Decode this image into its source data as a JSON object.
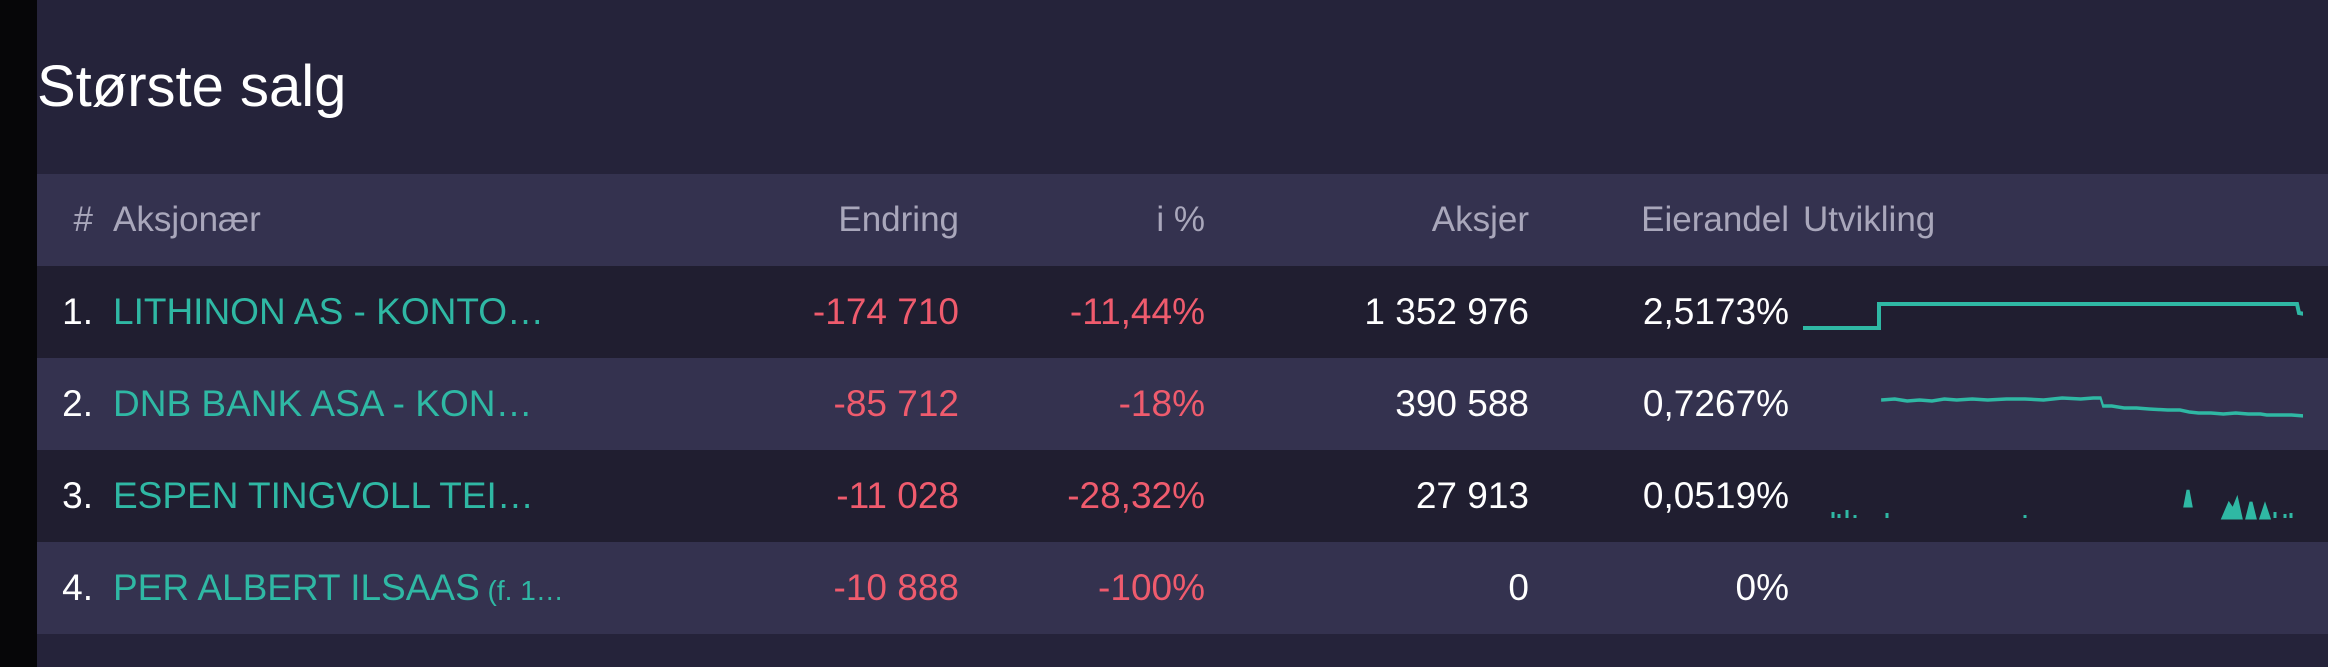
{
  "title": "Største salg",
  "colors": {
    "background": "#25233a",
    "row_alt": "#34324f",
    "row_dark": "#201e30",
    "name_link": "#2fb8a4",
    "negative": "#ef5b6d",
    "text": "#ffffff",
    "header_text": "#a9a7bb",
    "sparkline": "#2fb8a4"
  },
  "table": {
    "headers": {
      "num": "#",
      "name": "Aksjonær",
      "endring": "Endring",
      "pct": "i %",
      "aksjer": "Aksjer",
      "eierandel": "Eierandel",
      "utvikling": "Utvikling"
    },
    "rows": [
      {
        "num": "1.",
        "name": "LITHINON AS - KONTO…",
        "name_suffix": "",
        "endring": "-174 710",
        "pct": "-11,44%",
        "aksjer": "1 352 976",
        "eierandel": "2,5173%"
      },
      {
        "num": "2.",
        "name": "DNB BANK ASA - KON…",
        "name_suffix": "",
        "endring": "-85 712",
        "pct": "-18%",
        "aksjer": "390 588",
        "eierandel": "0,7267%"
      },
      {
        "num": "3.",
        "name": "ESPEN TINGVOLL TEI…",
        "name_suffix": "",
        "endring": "-11 028",
        "pct": "-28,32%",
        "aksjer": "27 913",
        "eierandel": "0,0519%"
      },
      {
        "num": "4.",
        "name": "PER ALBERT ILSAAS",
        "name_suffix": " (f. 1…",
        "endring": "-10 888",
        "pct": "-100%",
        "aksjer": "0",
        "eierandel": "0%"
      }
    ]
  }
}
